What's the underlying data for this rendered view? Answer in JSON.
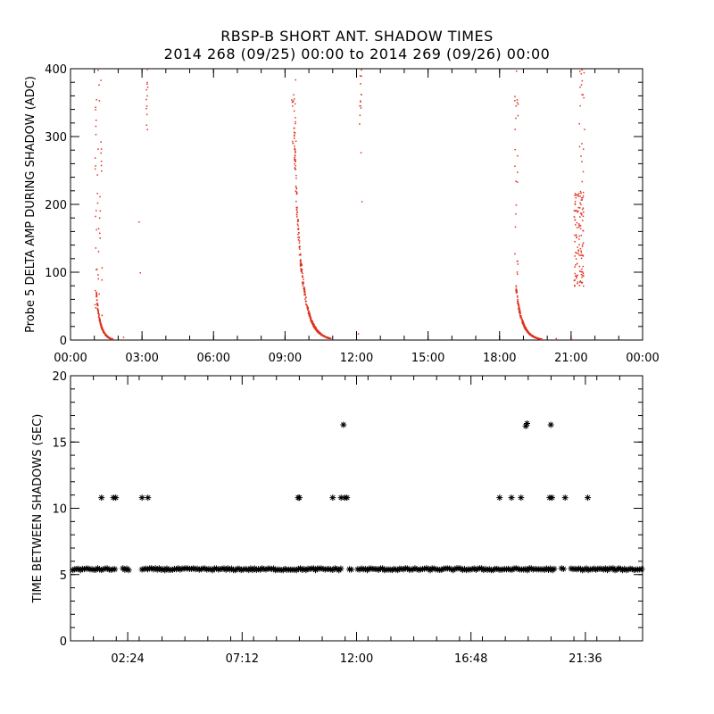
{
  "title_line1": "RBSP-B SHORT ANT. SHADOW TIMES",
  "title_line2": "2014 268 (09/25) 00:00 to 2014 269 (09/26) 00:00",
  "colors": {
    "top_points": "#e0301e",
    "bottom_points": "#000000",
    "axes": "#000000"
  },
  "chart_data": [
    {
      "type": "scatter",
      "ylabel": "Probe 5 DELTA AMP DURING SHADOW (ADC)",
      "xlabel": "",
      "x_units": "hours",
      "xlim": [
        0,
        24
      ],
      "ylim": [
        0,
        400
      ],
      "x_tick_labels": [
        "00:00",
        "03:00",
        "06:00",
        "09:00",
        "12:00",
        "15:00",
        "18:00",
        "21:00",
        "00:00"
      ],
      "x_ticks": [
        0,
        3,
        6,
        9,
        12,
        15,
        18,
        21,
        24
      ],
      "y_ticks": [
        0,
        100,
        200,
        300,
        400
      ],
      "marker": "dot",
      "series": [
        {
          "segments": [
            {
              "kind": "decay",
              "x_range": [
                1.05,
                1.75
              ],
              "y_range": [
                75,
                2
              ],
              "count": 220
            },
            {
              "kind": "decay",
              "x_range": [
                9.35,
                10.9
              ],
              "y_range": [
                320,
                3
              ],
              "count": 420
            },
            {
              "kind": "decay",
              "x_range": [
                18.65,
                19.75
              ],
              "y_range": [
                85,
                2
              ],
              "count": 300
            },
            {
              "kind": "scatter",
              "x_range": [
                1.0,
                1.3
              ],
              "y_range": [
                0,
                400
              ],
              "count": 45
            },
            {
              "kind": "scatter",
              "x_range": [
                9.25,
                9.45
              ],
              "y_range": [
                280,
                400
              ],
              "count": 20
            },
            {
              "kind": "scatter",
              "x_range": [
                18.6,
                18.75
              ],
              "y_range": [
                90,
                400
              ],
              "count": 25
            },
            {
              "kind": "scatter",
              "x_range": [
                3.15,
                3.25
              ],
              "y_range": [
                310,
                400
              ],
              "count": 12
            },
            {
              "kind": "scatter",
              "x_range": [
                12.1,
                12.2
              ],
              "y_range": [
                250,
                400
              ],
              "count": 14
            },
            {
              "kind": "scatter",
              "x_range": [
                21.1,
                21.5
              ],
              "y_range": [
                80,
                220
              ],
              "count": 120
            },
            {
              "kind": "scatter",
              "x_range": [
                21.3,
                21.55
              ],
              "y_range": [
                220,
                400
              ],
              "count": 20
            }
          ],
          "isolated": [
            [
              2.2,
              5
            ],
            [
              2.85,
              175
            ],
            [
              2.9,
              100
            ],
            [
              12.05,
              10
            ],
            [
              12.2,
              205
            ],
            [
              20.35,
              3
            ],
            [
              21.0,
              2
            ]
          ]
        }
      ]
    },
    {
      "type": "scatter",
      "ylabel": "TIME BETWEEN SHADOWS (SEC)",
      "xlabel": "",
      "x_units": "hours",
      "xlim": [
        0,
        24
      ],
      "ylim": [
        0,
        20
      ],
      "x_tick_labels": [
        "02:24",
        "07:12",
        "12:00",
        "16:48",
        "21:36"
      ],
      "x_ticks": [
        2.4,
        7.2,
        12.0,
        16.8,
        21.6
      ],
      "y_ticks": [
        0,
        5,
        10,
        15,
        20
      ],
      "marker": "asterisk",
      "series": [
        {
          "bands": [
            {
              "x_range": [
                0.1,
                1.9
              ],
              "y": 5.4
            },
            {
              "x_range": [
                2.2,
                2.5
              ],
              "y": 5.4
            },
            {
              "x_range": [
                3.0,
                11.0
              ],
              "y": 5.4
            },
            {
              "x_range": [
                11.1,
                11.4
              ],
              "y": 5.4
            },
            {
              "x_range": [
                11.7,
                11.85
              ],
              "y": 5.4
            },
            {
              "x_range": [
                12.05,
                20.3
              ],
              "y": 5.4
            },
            {
              "x_range": [
                20.6,
                20.75
              ],
              "y": 5.4
            },
            {
              "x_range": [
                21.0,
                24.0
              ],
              "y": 5.4
            }
          ],
          "points": [
            [
              1.3,
              10.8
            ],
            [
              1.8,
              10.8
            ],
            [
              1.9,
              10.8
            ],
            [
              3.0,
              10.8
            ],
            [
              3.25,
              10.8
            ],
            [
              9.55,
              10.8
            ],
            [
              9.6,
              10.8
            ],
            [
              11.0,
              10.8
            ],
            [
              11.35,
              10.8
            ],
            [
              11.5,
              10.8
            ],
            [
              11.6,
              10.8
            ],
            [
              11.45,
              16.3
            ],
            [
              18.0,
              10.8
            ],
            [
              18.5,
              10.8
            ],
            [
              18.9,
              10.8
            ],
            [
              19.1,
              16.2
            ],
            [
              19.15,
              16.4
            ],
            [
              20.1,
              10.8
            ],
            [
              20.2,
              10.8
            ],
            [
              20.15,
              16.3
            ],
            [
              20.75,
              10.8
            ],
            [
              21.7,
              10.8
            ]
          ]
        }
      ]
    }
  ]
}
